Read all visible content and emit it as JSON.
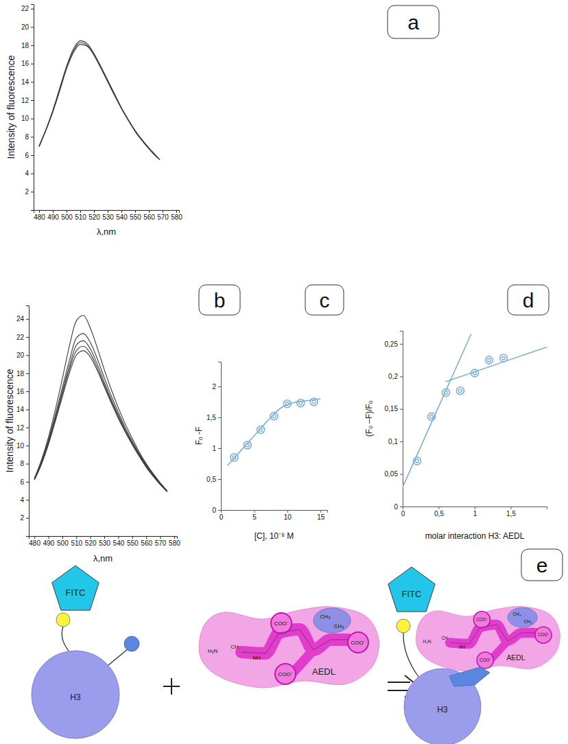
{
  "chart_data": [
    {
      "label": "a",
      "type": "line",
      "xlabel": "λ,nm",
      "ylabel": "Intensity of fluorescence",
      "x": [
        480,
        485,
        490,
        495,
        500,
        505,
        510,
        515,
        520,
        525,
        530,
        535,
        540,
        545,
        550,
        555,
        560,
        565,
        568
      ],
      "series": [
        {
          "color": "#3a3a3a",
          "values": [
            7.0,
            8.8,
            10.8,
            13.2,
            15.6,
            17.4,
            18.3,
            18.0,
            17.0,
            15.6,
            14.1,
            12.6,
            11.1,
            9.8,
            8.6,
            7.6,
            6.7,
            5.9,
            5.5
          ]
        },
        {
          "color": "#3a3a3a",
          "values": [
            6.9,
            8.7,
            10.7,
            13.0,
            15.4,
            17.2,
            18.1,
            17.9,
            16.9,
            15.5,
            14.0,
            12.5,
            11.1,
            9.8,
            8.6,
            7.6,
            6.7,
            5.9,
            5.5
          ]
        },
        {
          "color": "#3a3a3a",
          "values": [
            7.0,
            8.8,
            10.9,
            13.3,
            15.7,
            17.6,
            18.5,
            18.2,
            17.1,
            15.7,
            14.2,
            12.7,
            11.2,
            9.9,
            8.7,
            7.7,
            6.8,
            6.0,
            5.5
          ]
        }
      ],
      "xlim": [
        476,
        582
      ],
      "xticks": [
        480,
        490,
        500,
        510,
        520,
        530,
        540,
        550,
        560,
        570,
        580
      ],
      "ylim": [
        0,
        22.5
      ],
      "yticks": [
        2,
        4,
        6,
        8,
        10,
        12,
        14,
        16,
        18,
        20,
        22
      ]
    },
    {
      "label": "b",
      "type": "line",
      "xlabel": "λ,nm",
      "ylabel": "Intensity of fluorescence",
      "x": [
        480,
        485,
        490,
        495,
        500,
        505,
        510,
        515,
        520,
        525,
        530,
        535,
        540,
        545,
        550,
        555,
        560,
        565,
        570,
        575
      ],
      "series": [
        {
          "color": "#3a3a3a",
          "values": [
            6.4,
            8.4,
            10.9,
            14.0,
            17.4,
            21.0,
            23.8,
            24.4,
            23.0,
            20.8,
            18.4,
            16.2,
            14.2,
            12.4,
            10.8,
            9.3,
            8.0,
            6.9,
            5.9,
            5.0
          ]
        },
        {
          "color": "#3a3a3a",
          "values": [
            6.3,
            8.2,
            10.6,
            13.4,
            16.4,
            19.4,
            21.9,
            22.4,
            21.4,
            19.6,
            17.5,
            15.5,
            13.7,
            12.0,
            10.5,
            9.1,
            7.9,
            6.8,
            5.8,
            5.0
          ]
        },
        {
          "color": "#3a3a3a",
          "values": [
            6.3,
            8.1,
            10.4,
            13.1,
            16.0,
            18.8,
            21.1,
            21.6,
            20.7,
            19.0,
            17.0,
            15.1,
            13.4,
            11.8,
            10.3,
            9.0,
            7.8,
            6.7,
            5.8,
            4.9
          ]
        },
        {
          "color": "#3a3a3a",
          "values": [
            6.2,
            8.0,
            10.2,
            12.9,
            15.7,
            18.4,
            20.5,
            21.0,
            20.2,
            18.6,
            16.7,
            14.9,
            13.2,
            11.6,
            10.2,
            8.9,
            7.7,
            6.7,
            5.7,
            4.9
          ]
        },
        {
          "color": "#3a3a3a",
          "values": [
            6.2,
            7.9,
            10.1,
            12.7,
            15.4,
            18.0,
            20.0,
            20.5,
            19.8,
            18.3,
            16.5,
            14.7,
            13.0,
            11.5,
            10.1,
            8.8,
            7.6,
            6.6,
            5.7,
            4.9
          ]
        }
      ],
      "xlim": [
        476,
        582
      ],
      "xticks": [
        480,
        490,
        500,
        510,
        520,
        530,
        540,
        550,
        560,
        570,
        580
      ],
      "ylim": [
        0,
        25.5
      ],
      "yticks": [
        2,
        4,
        6,
        8,
        10,
        12,
        14,
        16,
        18,
        20,
        22,
        24
      ]
    },
    {
      "label": "c",
      "type": "scatter",
      "xlabel": "[C], 10⁻⁸ M",
      "ylabel": "Fₒ -F",
      "x": [
        2,
        4,
        6,
        8,
        10,
        12,
        14
      ],
      "series": [
        {
          "type": "scatter",
          "marker": "circle",
          "color": "#7fafd4",
          "values": [
            0.85,
            1.05,
            1.3,
            1.52,
            1.72,
            1.73,
            1.75
          ]
        },
        {
          "type": "line",
          "color": "#7fafd4",
          "x": [
            1,
            3,
            5,
            7,
            9,
            11,
            13,
            15
          ],
          "values": [
            0.72,
            0.96,
            1.2,
            1.44,
            1.65,
            1.74,
            1.77,
            1.8
          ]
        }
      ],
      "xlim": [
        0,
        16
      ],
      "xticks": [
        0,
        5,
        10,
        15
      ],
      "ylim": [
        0,
        2.4
      ],
      "yticks": [
        0,
        {
          "value": 0.5,
          "label": "0,5"
        },
        1,
        {
          "value": 1.5,
          "label": "1,5"
        },
        2
      ]
    },
    {
      "label": "d",
      "type": "scatter",
      "xlabel": "molar interaction H3: AEDL",
      "ylabel": "(Fₒ –F)/Fₒ",
      "x": [
        0.2,
        0.4,
        0.6,
        0.8,
        1.0,
        1.2,
        1.4
      ],
      "series": [
        {
          "type": "scatter",
          "marker": "circle",
          "color": "#7fafd4",
          "values": [
            0.07,
            0.138,
            0.175,
            0.178,
            0.205,
            0.225,
            0.228
          ]
        },
        {
          "type": "line",
          "color": "#7fafd4",
          "x": [
            0,
            0.95
          ],
          "values": [
            0.03,
            0.265
          ]
        },
        {
          "type": "line",
          "color": "#7fafd4",
          "x": [
            0.6,
            2
          ],
          "values": [
            0.192,
            0.245
          ]
        }
      ],
      "xlim": [
        0,
        2
      ],
      "xticks": [
        0,
        {
          "value": 0.5,
          "label": "0,5"
        },
        1,
        {
          "value": 1.5,
          "label": "1,5"
        }
      ],
      "ylim": [
        0,
        0.27
      ],
      "yticks": [
        0,
        {
          "value": 0.05,
          "label": "0,05"
        },
        {
          "value": 0.1,
          "label": "0,1"
        },
        {
          "value": 0.15,
          "label": "0,15"
        },
        {
          "value": 0.2,
          "label": "0,2"
        },
        {
          "value": 0.25,
          "label": "0,25"
        }
      ]
    }
  ],
  "diagram": {
    "label": "e",
    "protein": "H3",
    "fluorophore": "FITC",
    "ligand": "AEDL",
    "structure_labels": [
      "H₂N",
      "CH",
      "NH",
      "COO⁻",
      "COO⁻",
      "COO⁻",
      "CH₃",
      "CH₃"
    ]
  }
}
